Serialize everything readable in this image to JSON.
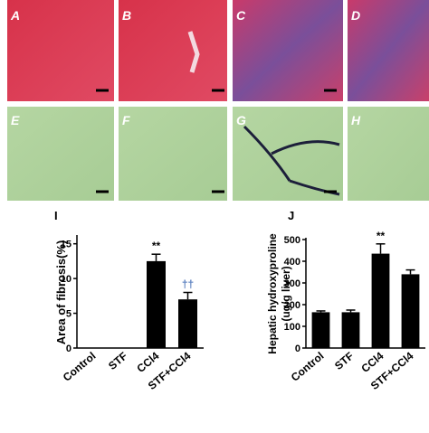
{
  "panels": [
    "A",
    "B",
    "C",
    "D",
    "E",
    "F",
    "G",
    "H"
  ],
  "chart_data": [
    {
      "type": "bar",
      "title": "I",
      "ylabel": "Area of fibrosis(%)",
      "categories": [
        "Control",
        "STF",
        "CCl4",
        "STF+CCl4"
      ],
      "values": [
        0,
        0,
        12.5,
        7
      ],
      "errors": [
        0,
        0,
        1,
        1
      ],
      "annotations": [
        null,
        null,
        "**",
        "††"
      ],
      "annotation_colors": [
        "#000000",
        "#000000",
        "#000000",
        "#5a7fbf"
      ],
      "color": "#000000",
      "ylim": [
        0,
        16
      ],
      "yticks": [
        0,
        5,
        10,
        15
      ]
    },
    {
      "type": "bar",
      "title": "J",
      "ylabel": [
        "Hepatic hydroxyproline",
        "(ug/g liver)"
      ],
      "categories": [
        "Control",
        "STF",
        "CCl4",
        "STF+CCl4"
      ],
      "values": [
        165,
        165,
        435,
        340
      ],
      "errors": [
        6,
        10,
        45,
        20
      ],
      "annotations": [
        null,
        null,
        "**",
        null
      ],
      "annotation_colors": [
        "#000000",
        "#000000",
        "#000000",
        "#000000"
      ],
      "color": "#000000",
      "ylim": [
        0,
        500
      ],
      "yticks": [
        0,
        100,
        200,
        300,
        400,
        500
      ]
    }
  ]
}
